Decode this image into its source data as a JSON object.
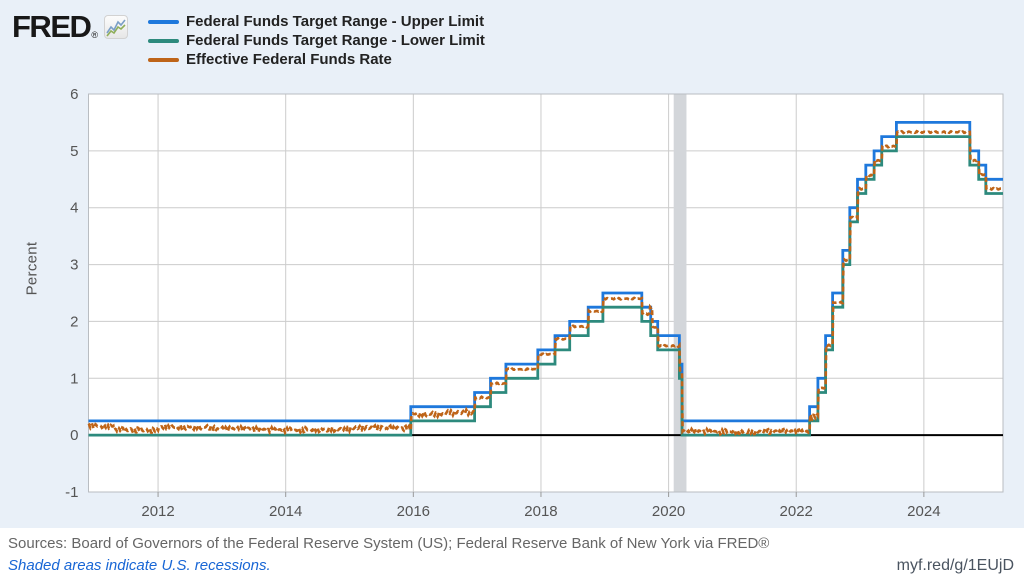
{
  "brand": {
    "logo_text": "FRED",
    "reg": "®",
    "icon": "sparkline-icon"
  },
  "legend": {
    "items": [
      {
        "label": "Federal Funds Target Range - Upper Limit"
      },
      {
        "label": "Federal Funds Target Range - Lower Limit"
      },
      {
        "label": "Effective Federal Funds Rate"
      }
    ]
  },
  "footer": {
    "sources": "Sources: Board of Governors of the Federal Reserve System (US); Federal Reserve Bank of New York via FRED®",
    "recession_note": "Shaded areas indicate U.S. recessions.",
    "short_link": "myf.red/g/1EUjD"
  },
  "chart_data": {
    "type": "line",
    "step": true,
    "title": "",
    "xlabel": "",
    "ylabel": "Percent",
    "x_range": [
      2010.91,
      2025.24
    ],
    "y_range": [
      -1,
      6
    ],
    "x_ticks": [
      2012,
      2014,
      2016,
      2018,
      2020,
      2022,
      2024
    ],
    "y_ticks": [
      6,
      5,
      4,
      3,
      2,
      1,
      0,
      -1
    ],
    "grid": true,
    "legend_position": "top-left",
    "zero_line": true,
    "recession_bands": [
      [
        2020.08,
        2020.28
      ]
    ],
    "colors": {
      "upper": "#1e78dc",
      "lower": "#2d8a7d",
      "effective": "#be6418",
      "gridline": "#cccccc",
      "plot_border": "#b9bdc2",
      "recession": "#d3d6da"
    },
    "series": [
      {
        "id": "upper",
        "name": "Federal Funds Target Range - Upper Limit",
        "color": "#1e78dc",
        "style": "solid",
        "noisy": false,
        "points": [
          [
            2010.91,
            0.25
          ],
          [
            2015.96,
            0.5
          ],
          [
            2016.96,
            0.75
          ],
          [
            2017.21,
            1.0
          ],
          [
            2017.45,
            1.25
          ],
          [
            2017.95,
            1.5
          ],
          [
            2018.22,
            1.75
          ],
          [
            2018.45,
            2.0
          ],
          [
            2018.74,
            2.25
          ],
          [
            2018.97,
            2.5
          ],
          [
            2019.58,
            2.25
          ],
          [
            2019.72,
            2.0
          ],
          [
            2019.83,
            1.75
          ],
          [
            2020.17,
            1.25
          ],
          [
            2020.21,
            0.25
          ],
          [
            2022.21,
            0.5
          ],
          [
            2022.34,
            1.0
          ],
          [
            2022.46,
            1.75
          ],
          [
            2022.57,
            2.5
          ],
          [
            2022.73,
            3.25
          ],
          [
            2022.84,
            4.0
          ],
          [
            2022.96,
            4.5
          ],
          [
            2023.09,
            4.75
          ],
          [
            2023.22,
            5.0
          ],
          [
            2023.34,
            5.25
          ],
          [
            2023.57,
            5.5
          ],
          [
            2024.72,
            5.0
          ],
          [
            2024.86,
            4.75
          ],
          [
            2024.97,
            4.5
          ]
        ]
      },
      {
        "id": "lower",
        "name": "Federal Funds Target Range - Lower Limit",
        "color": "#2d8a7d",
        "style": "solid",
        "noisy": false,
        "points": [
          [
            2010.91,
            0.0
          ],
          [
            2015.96,
            0.25
          ],
          [
            2016.96,
            0.5
          ],
          [
            2017.21,
            0.75
          ],
          [
            2017.45,
            1.0
          ],
          [
            2017.95,
            1.25
          ],
          [
            2018.22,
            1.5
          ],
          [
            2018.45,
            1.75
          ],
          [
            2018.74,
            2.0
          ],
          [
            2018.97,
            2.25
          ],
          [
            2019.58,
            2.0
          ],
          [
            2019.72,
            1.75
          ],
          [
            2019.83,
            1.5
          ],
          [
            2020.17,
            1.0
          ],
          [
            2020.21,
            0.0
          ],
          [
            2022.21,
            0.25
          ],
          [
            2022.34,
            0.75
          ],
          [
            2022.46,
            1.5
          ],
          [
            2022.57,
            2.25
          ],
          [
            2022.73,
            3.0
          ],
          [
            2022.84,
            3.75
          ],
          [
            2022.96,
            4.25
          ],
          [
            2023.09,
            4.5
          ],
          [
            2023.22,
            4.75
          ],
          [
            2023.34,
            5.0
          ],
          [
            2023.57,
            5.25
          ],
          [
            2024.72,
            4.75
          ],
          [
            2024.86,
            4.5
          ],
          [
            2024.97,
            4.25
          ]
        ]
      },
      {
        "id": "effective",
        "name": "Effective Federal Funds Rate",
        "color": "#be6418",
        "style": "dashed",
        "noisy": true,
        "points": [
          [
            2010.91,
            0.16
          ],
          [
            2011.3,
            0.09
          ],
          [
            2012.0,
            0.14
          ],
          [
            2012.8,
            0.11
          ],
          [
            2013.5,
            0.09
          ],
          [
            2014.3,
            0.1
          ],
          [
            2015.0,
            0.13
          ],
          [
            2015.5,
            0.12
          ],
          [
            2015.96,
            0.37
          ],
          [
            2016.5,
            0.4
          ],
          [
            2016.96,
            0.66
          ],
          [
            2017.21,
            0.91
          ],
          [
            2017.45,
            1.16
          ],
          [
            2017.95,
            1.42
          ],
          [
            2018.22,
            1.69
          ],
          [
            2018.45,
            1.91
          ],
          [
            2018.74,
            2.18
          ],
          [
            2018.97,
            2.4
          ],
          [
            2019.58,
            2.13
          ],
          [
            2019.7,
            2.25
          ],
          [
            2019.74,
            1.9
          ],
          [
            2019.83,
            1.57
          ],
          [
            2020.17,
            1.1
          ],
          [
            2020.21,
            0.06
          ],
          [
            2022.21,
            0.33
          ],
          [
            2022.34,
            0.83
          ],
          [
            2022.46,
            1.58
          ],
          [
            2022.57,
            2.33
          ],
          [
            2022.73,
            3.08
          ],
          [
            2022.84,
            3.83
          ],
          [
            2022.96,
            4.33
          ],
          [
            2023.09,
            4.57
          ],
          [
            2023.22,
            4.83
          ],
          [
            2023.34,
            5.08
          ],
          [
            2023.57,
            5.33
          ],
          [
            2024.72,
            4.83
          ],
          [
            2024.86,
            4.58
          ],
          [
            2024.97,
            4.33
          ]
        ]
      }
    ]
  }
}
